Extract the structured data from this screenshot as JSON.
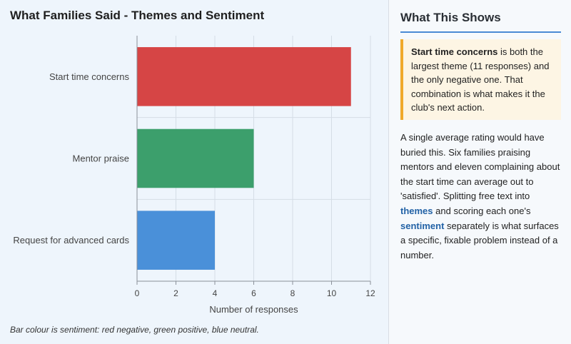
{
  "chart_data": {
    "type": "bar",
    "orientation": "horizontal",
    "title": "What Families Said - Themes and Sentiment",
    "categories": [
      "Start time concerns",
      "Mentor praise",
      "Request for advanced cards"
    ],
    "values": [
      11,
      6,
      4
    ],
    "sentiment": [
      "negative",
      "positive",
      "neutral"
    ],
    "colors": [
      "#d64545",
      "#3c9f6c",
      "#4a90d9"
    ],
    "xlabel": "Number of responses",
    "xlim": [
      0,
      12
    ],
    "xticks": [
      0,
      2,
      4,
      6,
      8,
      10,
      12
    ],
    "grid": true,
    "note": "Bar colour is sentiment: red negative, green positive, blue neutral."
  },
  "sidebar": {
    "title": "What This Shows",
    "callout": {
      "strong": "Start time concerns",
      "rest": " is both the largest theme (11 responses) and the only negative one. That combination is what makes it the club's next action."
    },
    "body": {
      "p1": "A single average rating would have buried this. Six families praising mentors and eleven complaining about the start time can average out to 'satisfied'. Splitting free text into ",
      "term1": "themes",
      "p2": " and scoring each one's ",
      "term2": "sentiment",
      "p3": " separately is what surfaces a specific, fixable problem instead of a number."
    },
    "accent_color": "#4a8ad4",
    "callout_border_color": "#f0a92a"
  }
}
